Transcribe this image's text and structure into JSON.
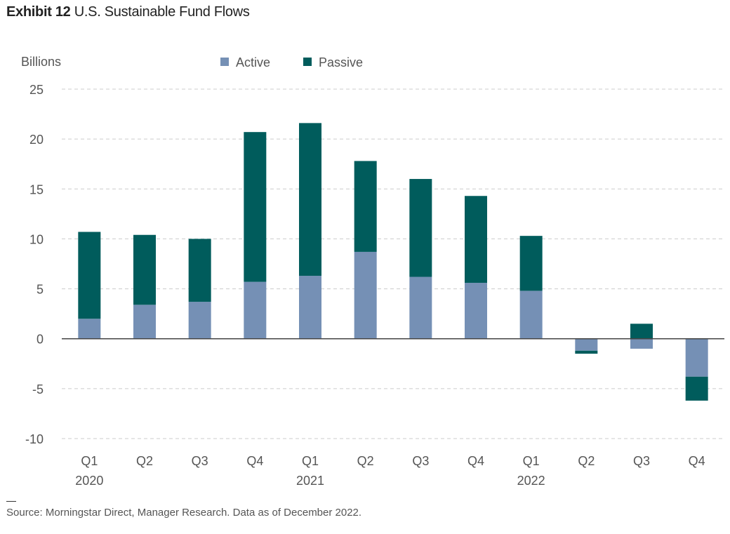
{
  "title": {
    "exhibit": "Exhibit 12",
    "text": "U.S. Sustainable Fund Flows"
  },
  "source": "Source: Morningstar Direct, Manager Research. Data as of December 2022.",
  "chart_data": {
    "type": "bar",
    "stacked": true,
    "ylabel": "Billions",
    "ylim": [
      -10,
      25
    ],
    "yticks": [
      25,
      20,
      15,
      10,
      5,
      0,
      -5,
      -10
    ],
    "grid": true,
    "legend_placement": "top",
    "categories": [
      "Q1",
      "Q2",
      "Q3",
      "Q4",
      "Q1",
      "Q2",
      "Q3",
      "Q4",
      "Q1",
      "Q2",
      "Q3",
      "Q4"
    ],
    "year_labels": [
      {
        "index": 0,
        "label": "2020"
      },
      {
        "index": 4,
        "label": "2021"
      },
      {
        "index": 8,
        "label": "2022"
      }
    ],
    "series": [
      {
        "name": "Active",
        "color": "#7590b5",
        "values": [
          2.0,
          3.4,
          3.7,
          5.7,
          6.3,
          8.7,
          6.2,
          5.6,
          4.8,
          -1.2,
          -1.0,
          -3.8
        ]
      },
      {
        "name": "Passive",
        "color": "#005c5c",
        "values": [
          8.7,
          7.0,
          6.3,
          15.0,
          15.3,
          9.1,
          9.8,
          8.7,
          5.5,
          -0.3,
          1.5,
          -2.4
        ]
      }
    ]
  }
}
